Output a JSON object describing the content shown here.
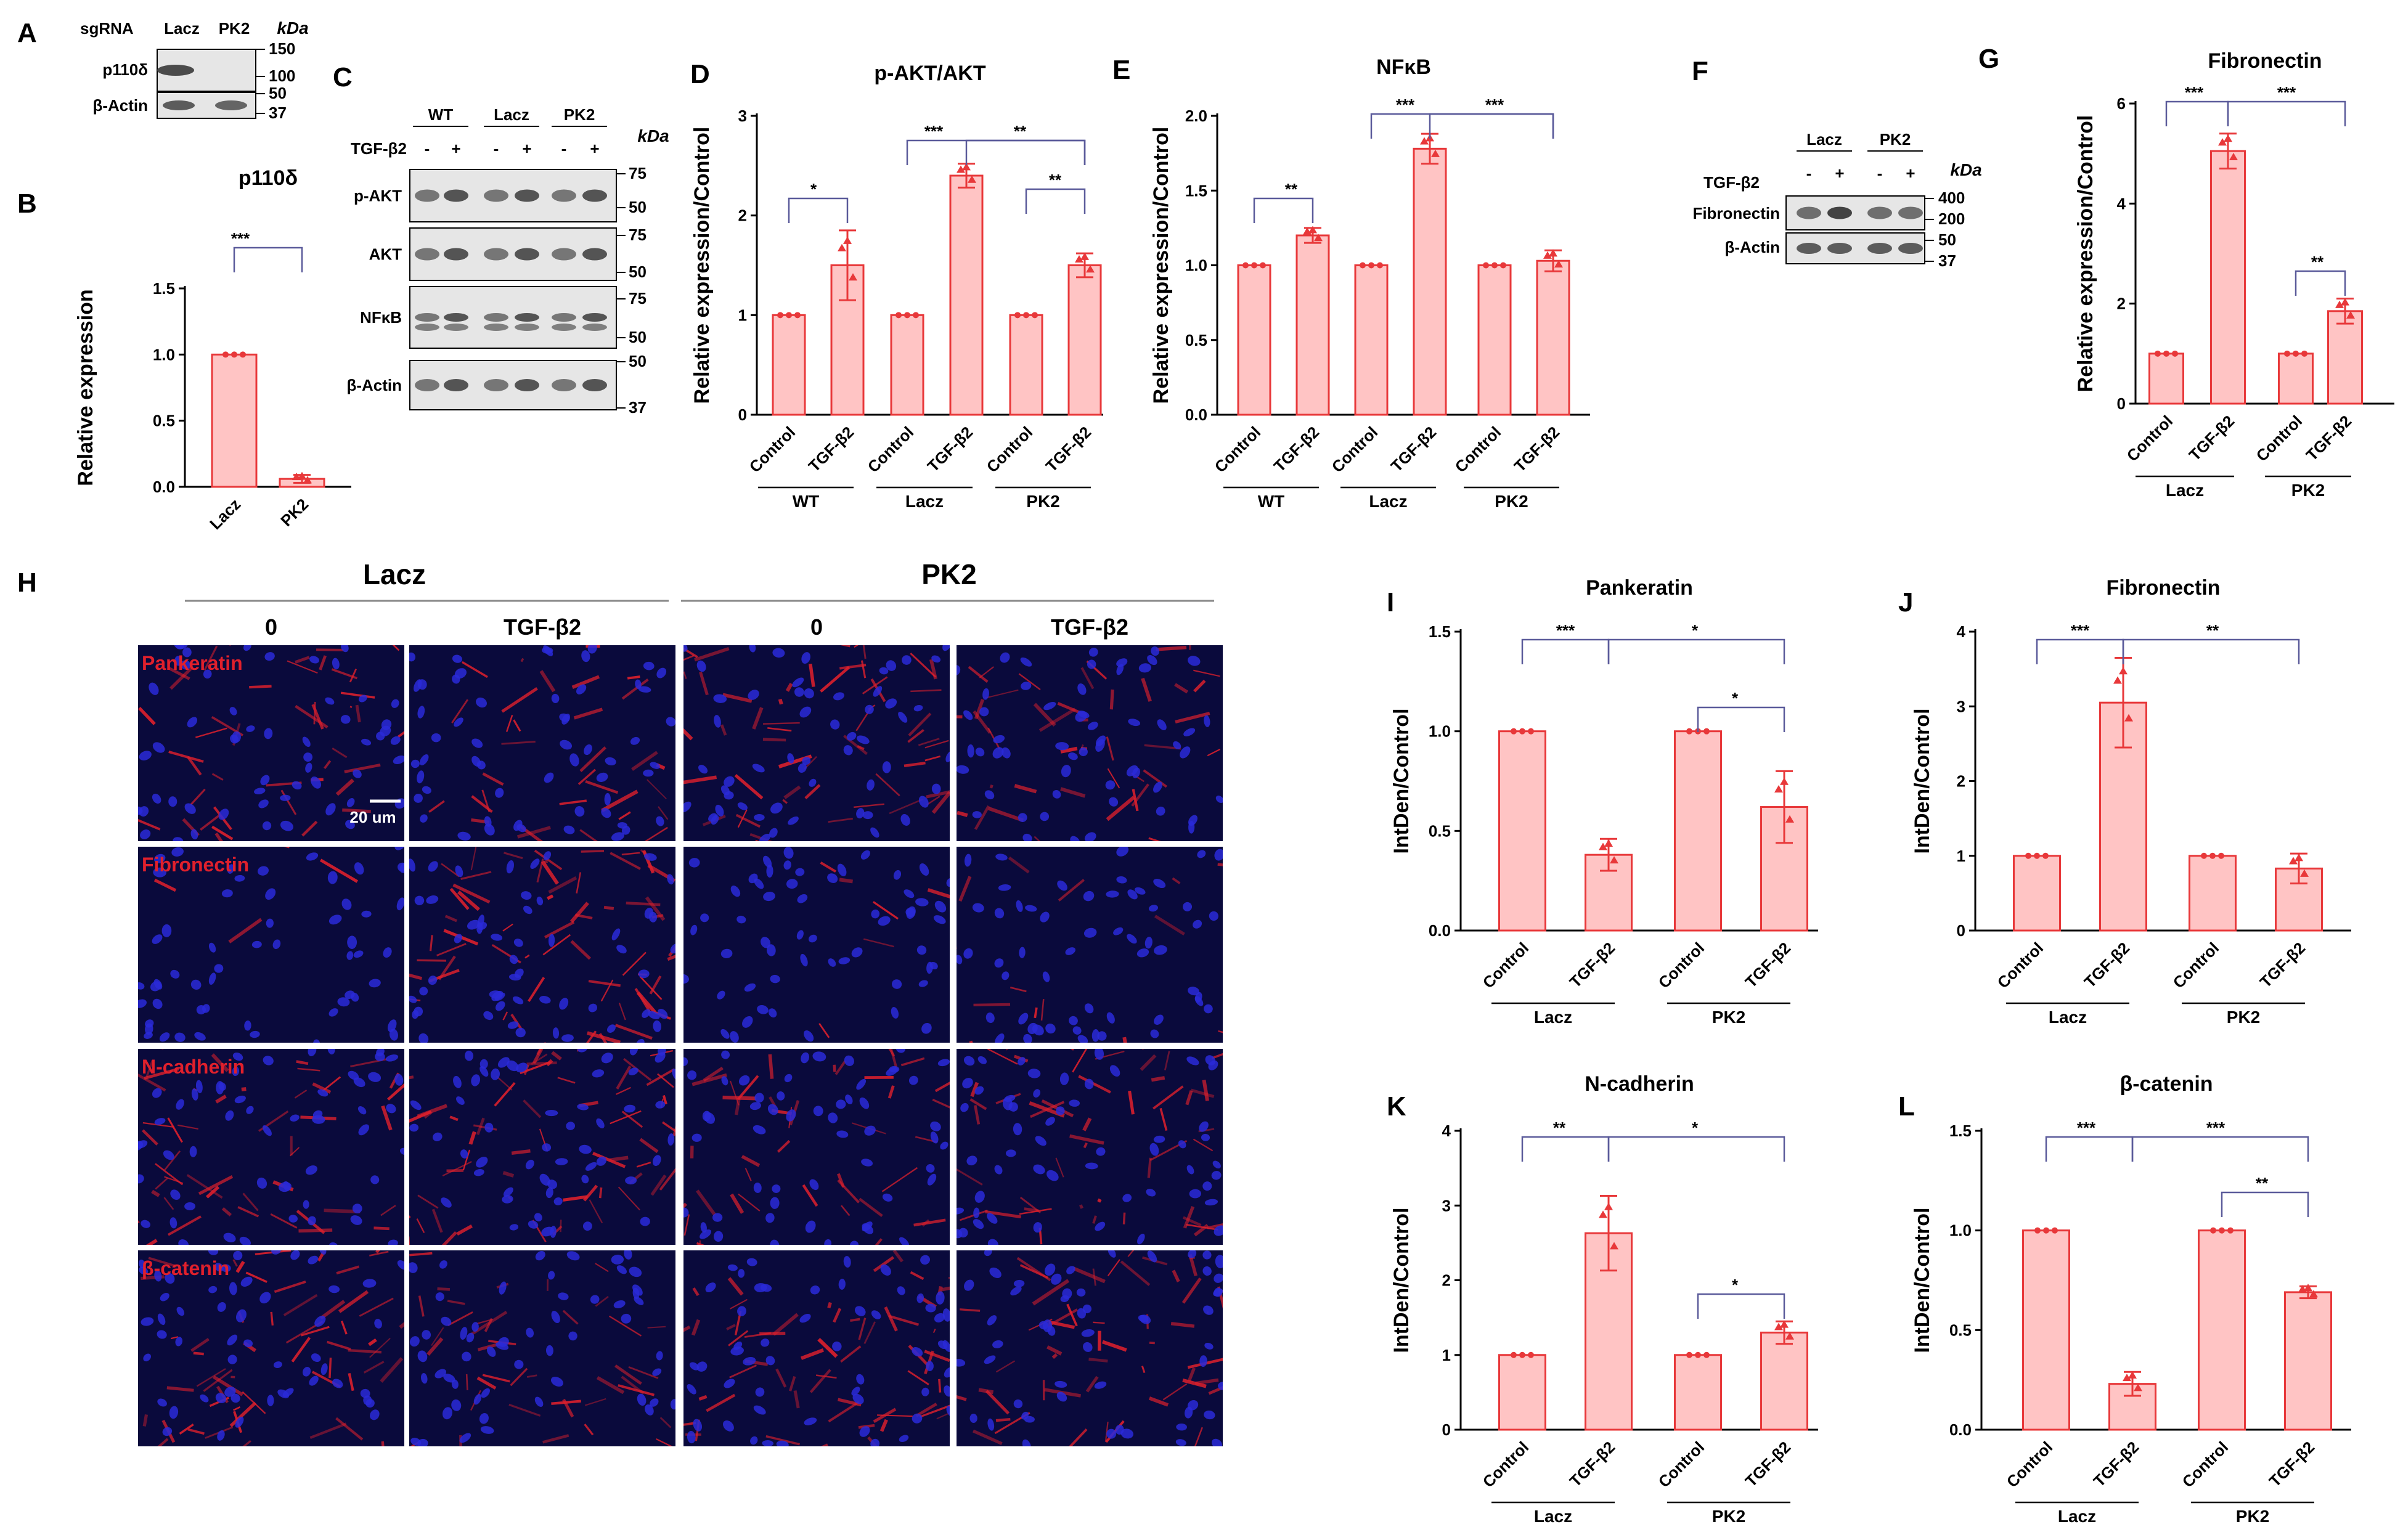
{
  "panels": {
    "A": {
      "letter": "A",
      "header": "sgRNA",
      "lanes": [
        "Lacz",
        "PK2"
      ],
      "unit": "kDa",
      "rows": [
        "p110δ",
        "β-Actin"
      ],
      "markers": [
        "150",
        "100",
        "50",
        "37"
      ]
    },
    "C": {
      "letter": "C",
      "groups": [
        "WT",
        "Lacz",
        "PK2"
      ],
      "treat_label": "TGF-β2",
      "treat_signs": [
        "-",
        "+",
        "-",
        "+",
        "-",
        "+"
      ],
      "unit": "kDa",
      "rows": [
        "p-AKT",
        "AKT",
        "NFκB",
        "β-Actin"
      ],
      "markers": [
        "75",
        "50",
        "75",
        "50",
        "75",
        "50",
        "50",
        "37"
      ]
    },
    "F": {
      "letter": "F",
      "groups": [
        "Lacz",
        "PK2"
      ],
      "treat_label": "TGF-β2",
      "treat_signs": [
        "-",
        "+",
        "-",
        "+"
      ],
      "unit": "kDa",
      "rows": [
        "Fibronectin",
        "β-Actin"
      ],
      "markers": [
        "400",
        "200",
        "50",
        "37"
      ]
    },
    "H": {
      "letter": "H",
      "groups": [
        "Lacz",
        "PK2"
      ],
      "columns": [
        "0",
        "TGF-β2",
        "0",
        "TGF-β2"
      ],
      "rows": [
        "Pankeratin",
        "Fibronectin",
        "N-cadherin",
        "β-catenin"
      ],
      "scalebar": "20 um"
    }
  },
  "chart_data": [
    {
      "id": "B",
      "type": "bar",
      "title": "p110δ",
      "ylabel": "Relative expression",
      "categories": [
        "Lacz",
        "PK2"
      ],
      "values": [
        1.0,
        0.06
      ],
      "errors": [
        0,
        0.03
      ],
      "ylim": [
        0,
        1.5
      ],
      "yticks": [
        "0.0",
        "0.5",
        "1.0",
        "1.5"
      ],
      "group_labels": [],
      "significance": [
        {
          "label": "***"
        }
      ]
    },
    {
      "id": "D",
      "type": "bar",
      "title": "p-AKT/AKT",
      "ylabel": "Relative expression/Control",
      "categories": [
        "Control",
        "TGF-β2",
        "Control",
        "TGF-β2",
        "Control",
        "TGF-β2"
      ],
      "values": [
        1.0,
        1.5,
        1.0,
        2.4,
        1.0,
        1.5
      ],
      "errors": [
        0,
        0.35,
        0,
        0.12,
        0,
        0.12
      ],
      "ylim": [
        0,
        3
      ],
      "yticks": [
        "0",
        "1",
        "2",
        "3"
      ],
      "group_labels": [
        "WT",
        "Lacz",
        "PK2"
      ],
      "significance": [
        {
          "label": "*"
        },
        {
          "label": "***"
        },
        {
          "label": "**"
        },
        {
          "label": "**"
        }
      ]
    },
    {
      "id": "E",
      "type": "bar",
      "title": "NFκB",
      "ylabel": "Relative expression/Control",
      "categories": [
        "Control",
        "TGF-β2",
        "Control",
        "TGF-β2",
        "Control",
        "TGF-β2"
      ],
      "values": [
        1.0,
        1.2,
        1.0,
        1.78,
        1.0,
        1.03
      ],
      "errors": [
        0,
        0.05,
        0,
        0.1,
        0,
        0.07
      ],
      "ylim": [
        0,
        2.0
      ],
      "yticks": [
        "0.0",
        "0.5",
        "1.0",
        "1.5",
        "2.0"
      ],
      "group_labels": [
        "WT",
        "Lacz",
        "PK2"
      ],
      "significance": [
        {
          "label": "**"
        },
        {
          "label": "***"
        },
        {
          "label": "***"
        }
      ]
    },
    {
      "id": "G",
      "type": "bar",
      "title": "Fibronectin",
      "ylabel": "Relative expression/Control",
      "categories": [
        "Control",
        "TGF-β2",
        "Control",
        "TGF-β2"
      ],
      "values": [
        1.0,
        5.05,
        1.0,
        1.85
      ],
      "errors": [
        0,
        0.35,
        0,
        0.25
      ],
      "ylim": [
        0,
        6
      ],
      "yticks": [
        "0",
        "2",
        "4",
        "6"
      ],
      "group_labels": [
        "Lacz",
        "PK2"
      ],
      "significance": [
        {
          "label": "***"
        },
        {
          "label": "***"
        },
        {
          "label": "**"
        }
      ]
    },
    {
      "id": "I",
      "type": "bar",
      "title": "Pankeratin",
      "ylabel": "IntDen/Control",
      "categories": [
        "Control",
        "TGF-β2",
        "Control",
        "TGF-β2"
      ],
      "values": [
        1.0,
        0.38,
        1.0,
        0.62
      ],
      "errors": [
        0,
        0.08,
        0,
        0.18
      ],
      "ylim": [
        0,
        1.5
      ],
      "yticks": [
        "0.0",
        "0.5",
        "1.0",
        "1.5"
      ],
      "group_labels": [
        "Lacz",
        "PK2"
      ],
      "significance": [
        {
          "label": "***"
        },
        {
          "label": "*"
        },
        {
          "label": "*"
        }
      ]
    },
    {
      "id": "J",
      "type": "bar",
      "title": "Fibronectin",
      "ylabel": "IntDen/Control",
      "categories": [
        "Control",
        "TGF-β2",
        "Control",
        "TGF-β2"
      ],
      "values": [
        1.0,
        3.05,
        1.0,
        0.83
      ],
      "errors": [
        0,
        0.6,
        0,
        0.2
      ],
      "ylim": [
        0,
        4
      ],
      "yticks": [
        "0",
        "1",
        "2",
        "3",
        "4"
      ],
      "group_labels": [
        "Lacz",
        "PK2"
      ],
      "significance": [
        {
          "label": "***"
        },
        {
          "label": "**"
        }
      ]
    },
    {
      "id": "K",
      "type": "bar",
      "title": "N-cadherin",
      "ylabel": "IntDen/Control",
      "categories": [
        "Control",
        "TGF-β2",
        "Control",
        "TGF-β2"
      ],
      "values": [
        1.0,
        2.63,
        1.0,
        1.3
      ],
      "errors": [
        0,
        0.5,
        0,
        0.15
      ],
      "ylim": [
        0,
        4
      ],
      "yticks": [
        "0",
        "1",
        "2",
        "3",
        "4"
      ],
      "group_labels": [
        "Lacz",
        "PK2"
      ],
      "significance": [
        {
          "label": "**"
        },
        {
          "label": "*"
        },
        {
          "label": "*"
        }
      ]
    },
    {
      "id": "L",
      "type": "bar",
      "title": "β-catenin",
      "ylabel": "IntDen/Control",
      "categories": [
        "Control",
        "TGF-β2",
        "Control",
        "TGF-β2"
      ],
      "values": [
        1.0,
        0.23,
        1.0,
        0.69
      ],
      "errors": [
        0,
        0.06,
        0,
        0.03
      ],
      "ylim": [
        0,
        1.5
      ],
      "yticks": [
        "0.0",
        "0.5",
        "1.0",
        "1.5"
      ],
      "group_labels": [
        "Lacz",
        "PK2"
      ],
      "significance": [
        {
          "label": "***"
        },
        {
          "label": "***"
        },
        {
          "label": "**"
        }
      ]
    }
  ],
  "colors": {
    "bar_fill": "#ffc4c4",
    "bar_edge": "#e8383a",
    "point": "#e8383a",
    "bracket": "#5a5a9a",
    "nuclei": "#2a2ad8",
    "stain": "#e0202c",
    "background_micro": "#0a0a3c",
    "label_red": "#e0202c"
  }
}
